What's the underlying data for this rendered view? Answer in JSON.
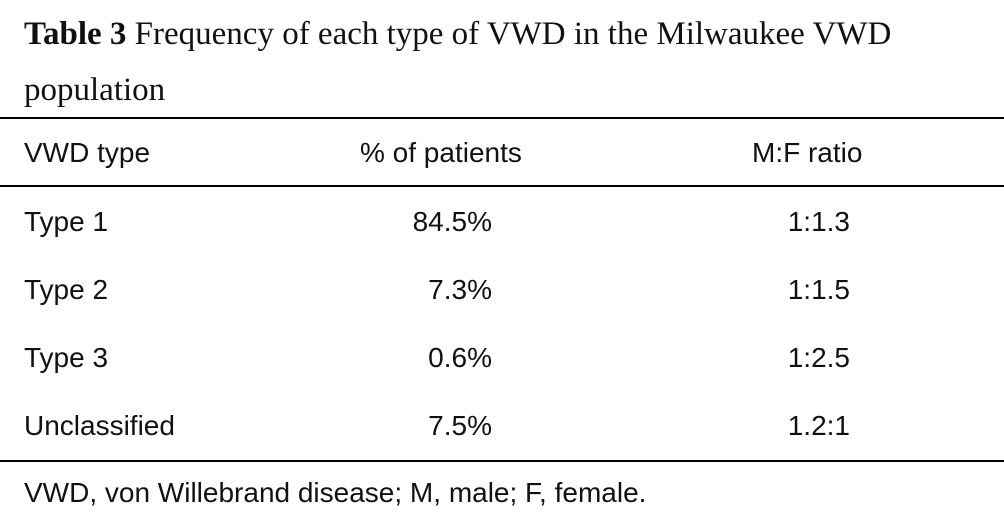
{
  "caption": {
    "label": "Table 3",
    "text": "Frequency of each type of VWD in the Milwaukee VWD population"
  },
  "table": {
    "headers": [
      "VWD type",
      "% of patients",
      "M:F ratio"
    ],
    "rows": [
      [
        "Type 1",
        "84.5%",
        "1:1.3"
      ],
      [
        "Type 2",
        "7.3%",
        "1:1.5"
      ],
      [
        "Type 3",
        "0.6%",
        "1:2.5"
      ],
      [
        "Unclassified",
        "7.5%",
        "1.2:1"
      ]
    ]
  },
  "footnote": "VWD, von Willebrand disease; M, male; F, female."
}
